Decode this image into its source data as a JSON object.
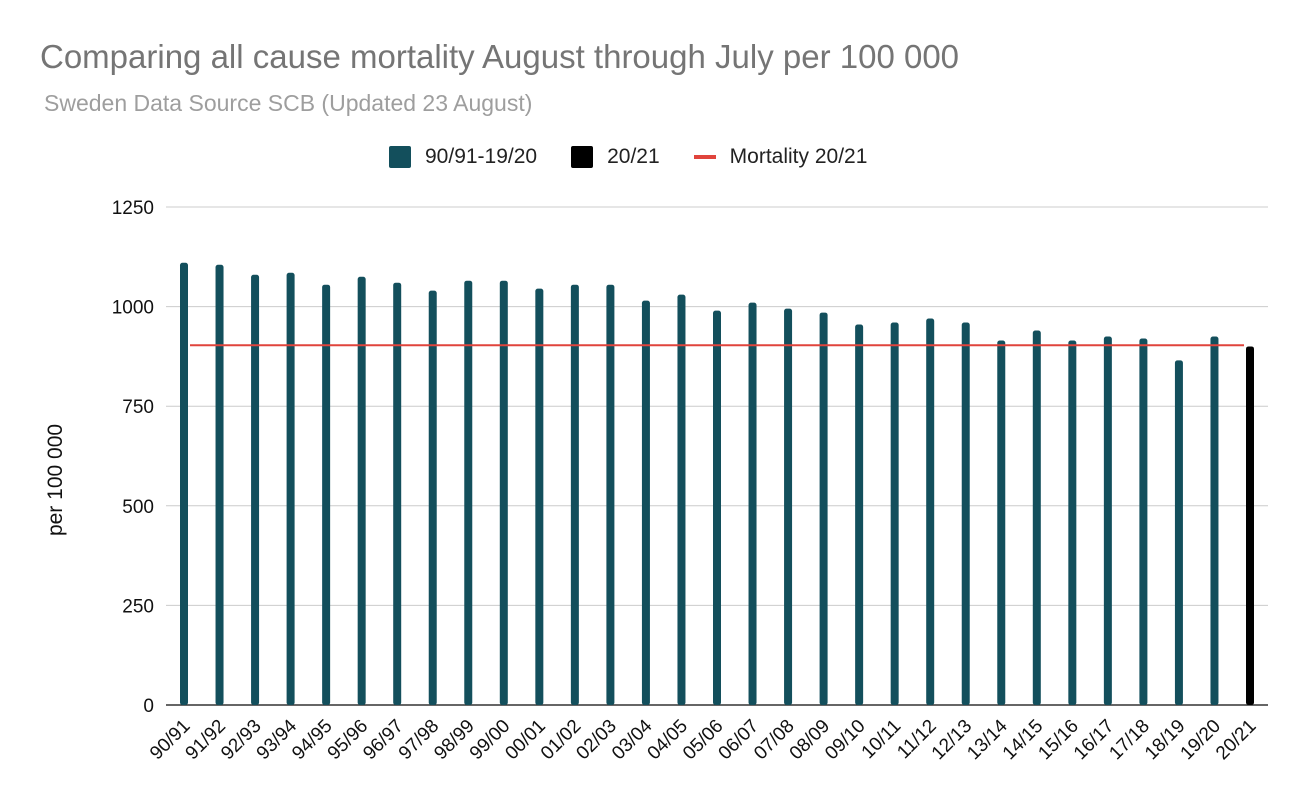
{
  "chart_data": {
    "type": "bar",
    "title": "Comparing all cause mortality August through July per 100 000",
    "subtitle": "Sweden Data Source SCB (Updated 23 August)",
    "ylabel": "per 100 000",
    "xlabel": "",
    "ylim": [
      0,
      1250
    ],
    "yticks": [
      "0",
      "250",
      "500",
      "750",
      "1000",
      "1250"
    ],
    "grid": true,
    "legend_position": "top-center",
    "categories": [
      "90/91",
      "91/92",
      "92/93",
      "93/94",
      "94/95",
      "95/96",
      "96/97",
      "97/98",
      "98/99",
      "99/00",
      "00/01",
      "01/02",
      "02/03",
      "03/04",
      "04/05",
      "05/06",
      "06/07",
      "07/08",
      "08/09",
      "09/10",
      "10/11",
      "11/12",
      "12/13",
      "13/14",
      "14/15",
      "15/16",
      "16/17",
      "17/18",
      "18/19",
      "19/20",
      "20/21"
    ],
    "series": [
      {
        "name": "90/91-19/20",
        "color": "#134f5c",
        "values": [
          1110,
          1105,
          1080,
          1085,
          1055,
          1075,
          1060,
          1040,
          1065,
          1065,
          1045,
          1055,
          1055,
          1015,
          1030,
          990,
          1010,
          995,
          985,
          955,
          960,
          970,
          960,
          915,
          940,
          915,
          925,
          920,
          865,
          925,
          null
        ]
      },
      {
        "name": "20/21",
        "color": "#000000",
        "values": [
          null,
          null,
          null,
          null,
          null,
          null,
          null,
          null,
          null,
          null,
          null,
          null,
          null,
          null,
          null,
          null,
          null,
          null,
          null,
          null,
          null,
          null,
          null,
          null,
          null,
          null,
          null,
          null,
          null,
          null,
          900
        ]
      }
    ],
    "reference_line": {
      "name": "Mortality 20/21",
      "color": "#e0443c",
      "value": 903
    }
  }
}
